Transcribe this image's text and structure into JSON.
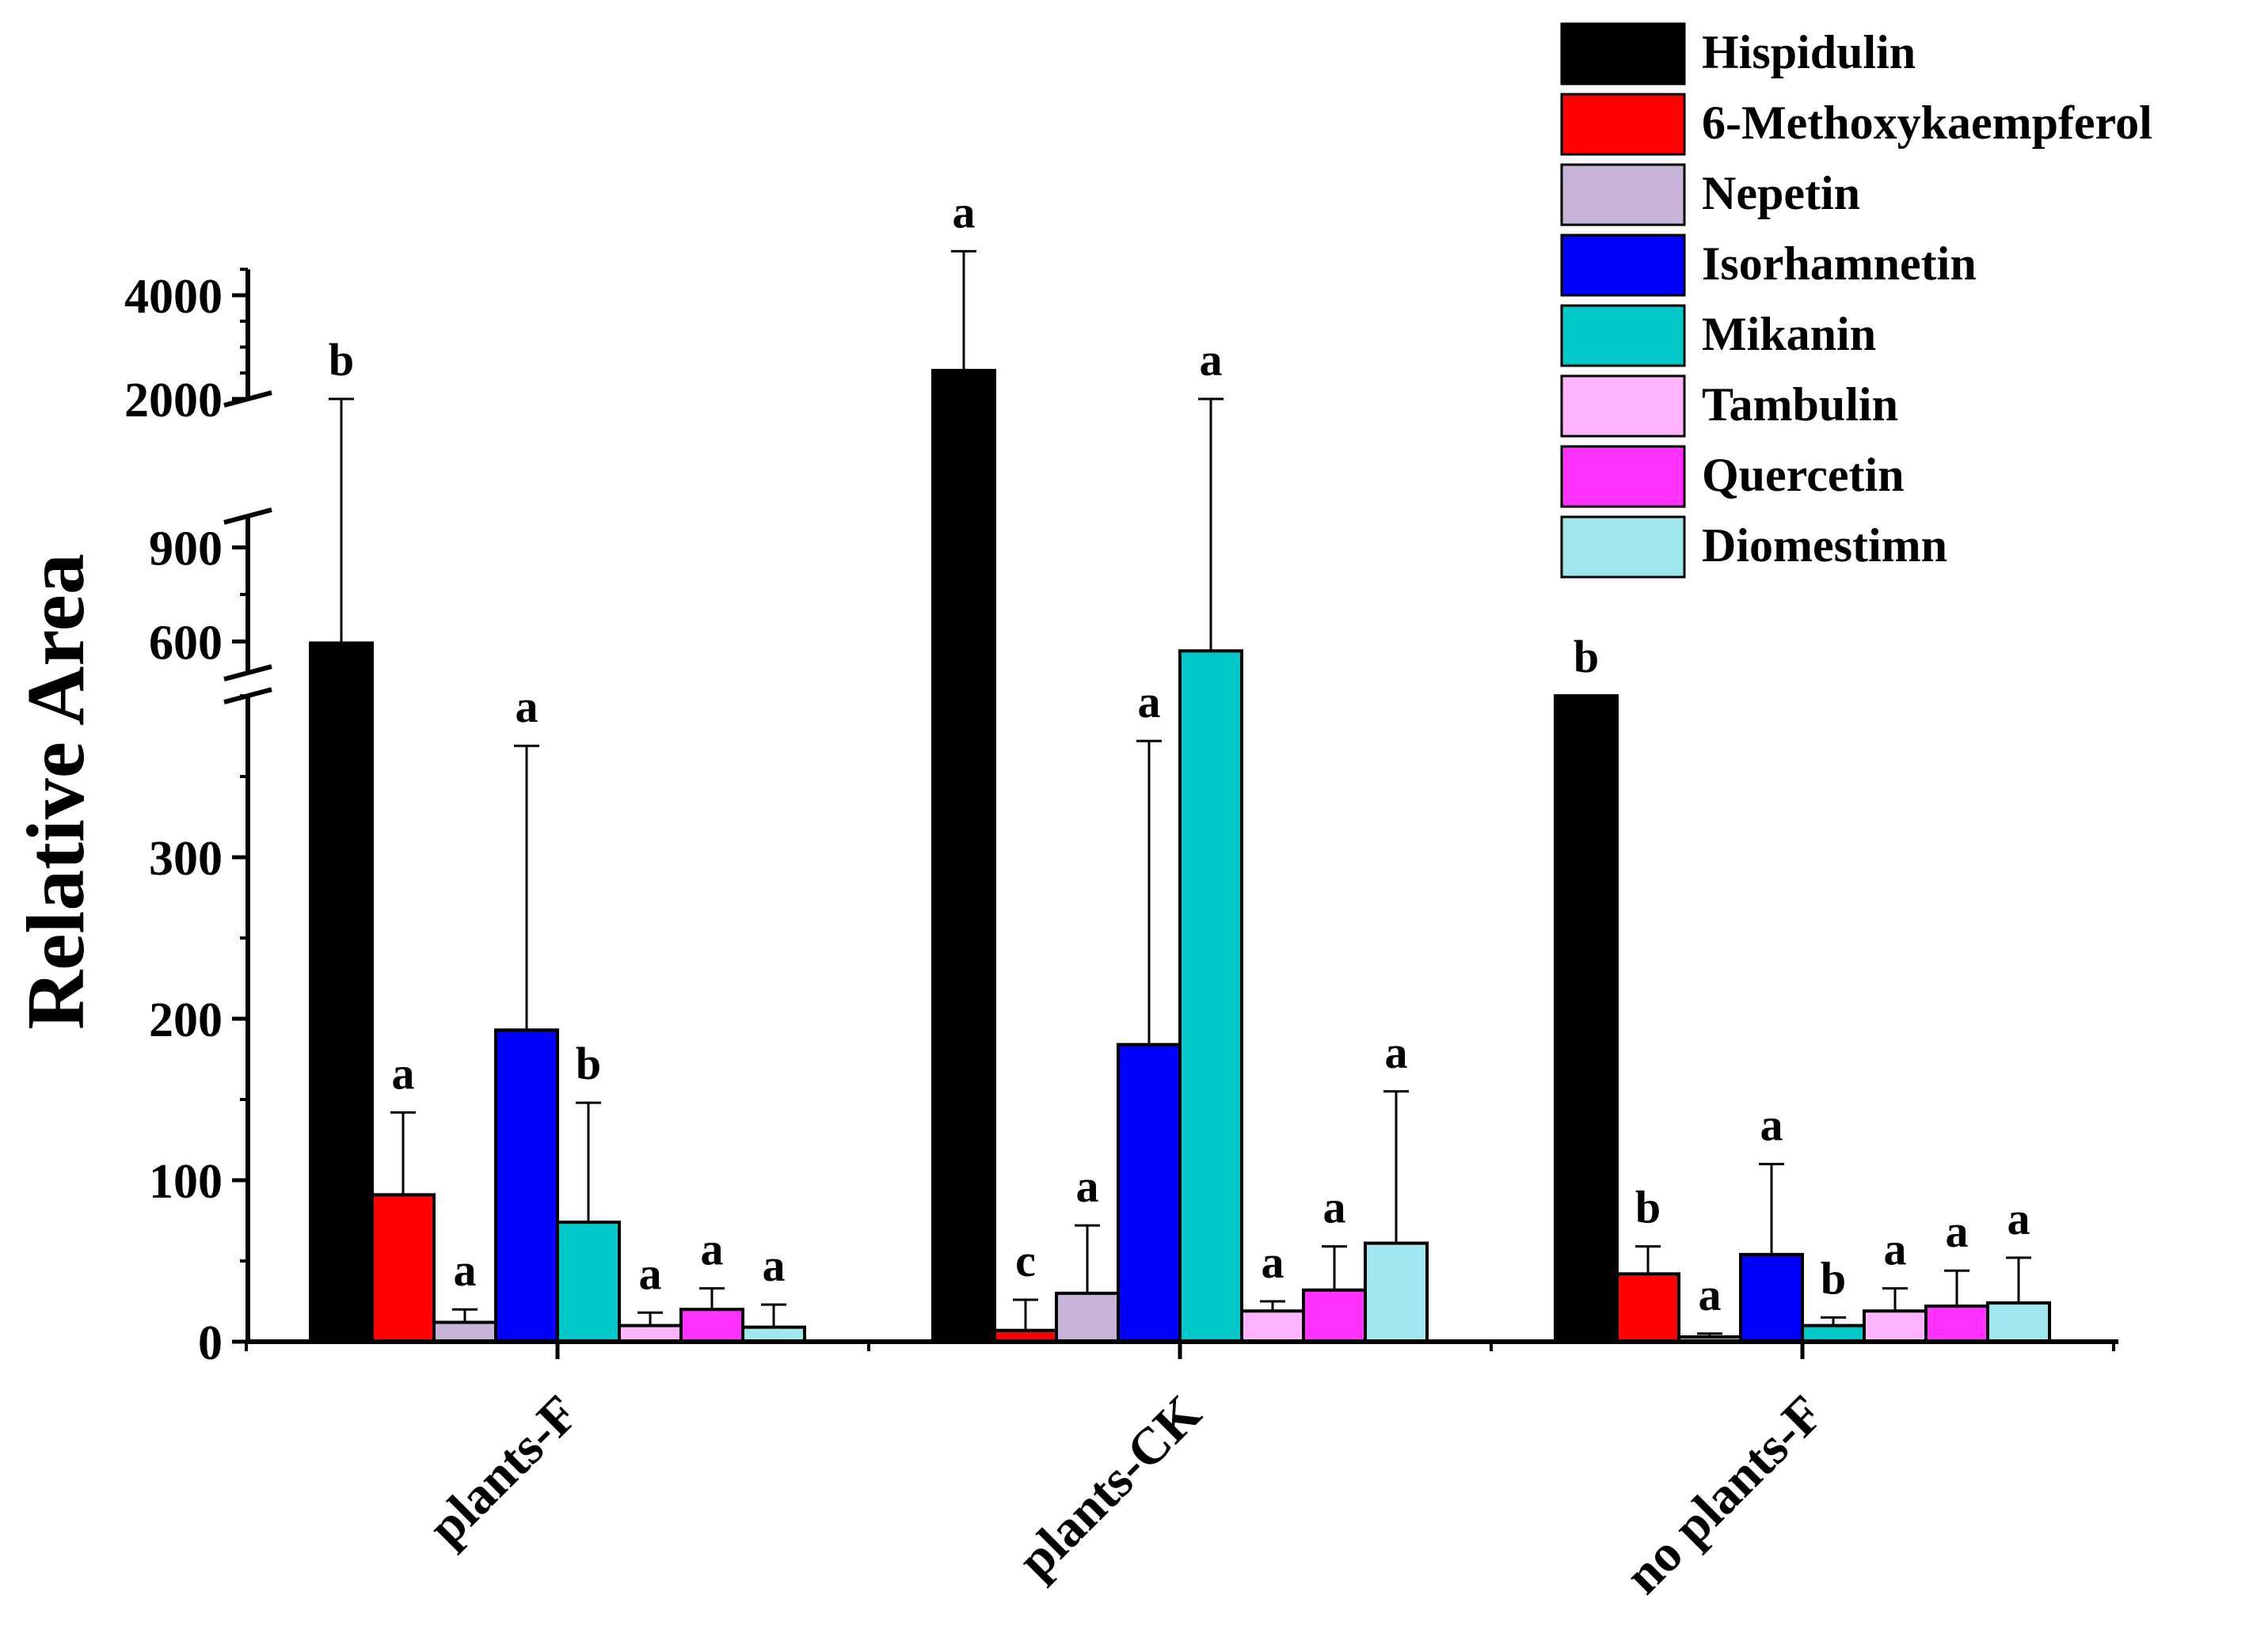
{
  "chart_data": {
    "type": "bar",
    "ylabel": "Relative Area",
    "xlabel": "",
    "categories": [
      "plants-F",
      "plants-CK",
      "no plants-F"
    ],
    "y_axis_segments": [
      {
        "range": [
          0,
          400
        ],
        "ticks": [
          0,
          100,
          200,
          300
        ],
        "tick_labels": [
          "0",
          "100",
          "200",
          "300"
        ]
      },
      {
        "range": [
          500,
          1000
        ],
        "ticks": [
          600,
          900
        ],
        "tick_labels": [
          "600",
          "900"
        ]
      },
      {
        "range": [
          2000,
          4500
        ],
        "ticks": [
          2000,
          4000
        ],
        "tick_labels": [
          "2000",
          "4000"
        ]
      }
    ],
    "axis_break": true,
    "legend_position": "top-right",
    "series": [
      {
        "name": "Hispidulin",
        "color": "#000000",
        "values": [
          595,
          2550,
          400
        ],
        "errors": [
          445,
          2300,
          0
        ],
        "letters": [
          "b",
          "a",
          "b"
        ]
      },
      {
        "name": "6-Methoxykaempferol",
        "color": "#ff0000",
        "values": [
          91,
          7,
          42
        ],
        "errors": [
          51,
          19,
          17
        ],
        "letters": [
          "a",
          "c",
          "b"
        ]
      },
      {
        "name": "Nepetin",
        "color": "#c8b4d8",
        "values": [
          12,
          30,
          3
        ],
        "errors": [
          8,
          42,
          2
        ],
        "letters": [
          "a",
          "a",
          "a"
        ]
      },
      {
        "name": "Isorhamnetin",
        "color": "#0000ff",
        "values": [
          193,
          184,
          54
        ],
        "errors": [
          176,
          188,
          56
        ],
        "letters": [
          "a",
          "a",
          "a"
        ]
      },
      {
        "name": "Mikanin",
        "color": "#00c8c8",
        "values": [
          74,
          570,
          10
        ],
        "errors": [
          74,
          540,
          5
        ],
        "letters": [
          "b",
          "a",
          "b"
        ]
      },
      {
        "name": "Tambulin",
        "color": "#ffb4ff",
        "values": [
          10,
          19,
          19
        ],
        "errors": [
          8,
          6,
          14
        ],
        "letters": [
          "a",
          "a",
          "a"
        ]
      },
      {
        "name": "Quercetin",
        "color": "#ff32ff",
        "values": [
          20,
          32,
          22
        ],
        "errors": [
          13,
          27,
          22
        ],
        "letters": [
          "a",
          "a",
          "a"
        ]
      },
      {
        "name": "Diomestimn",
        "color": "#a0e6ee",
        "values": [
          9,
          61,
          24
        ],
        "errors": [
          14,
          94,
          28
        ],
        "letters": [
          "a",
          "a",
          "a"
        ]
      }
    ]
  }
}
